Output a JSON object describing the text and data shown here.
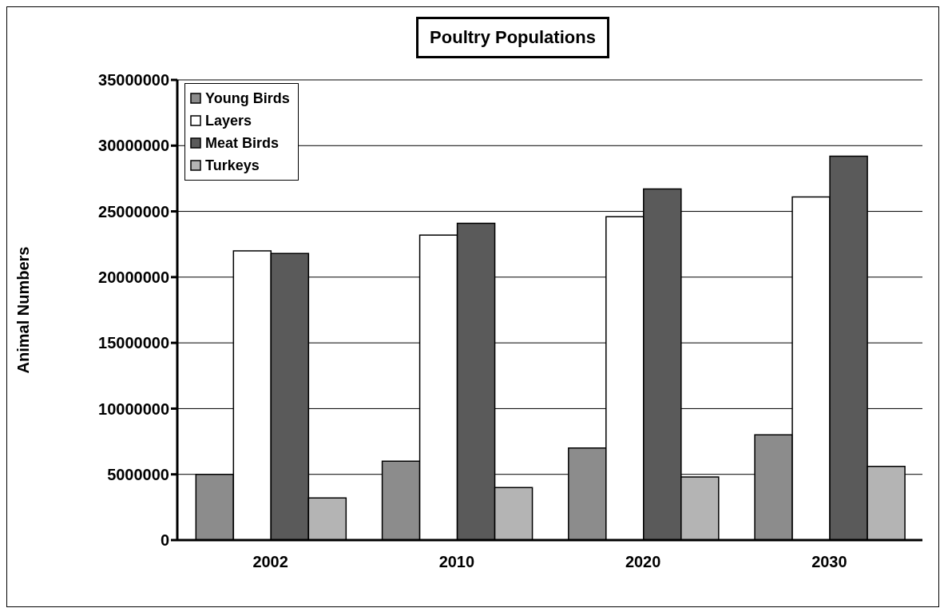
{
  "chart_data": {
    "type": "bar",
    "title": "Poultry Populations",
    "ylabel": "Animal Numbers",
    "categories": [
      "2002",
      "2010",
      "2020",
      "2030"
    ],
    "series": [
      {
        "name": "Young Birds",
        "color": "#8c8c8c",
        "values": [
          5000000,
          6000000,
          7000000,
          8000000
        ]
      },
      {
        "name": "Layers",
        "color": "#ffffff",
        "values": [
          22000000,
          23200000,
          24600000,
          26100000
        ]
      },
      {
        "name": "Meat Birds",
        "color": "#5a5a5a",
        "values": [
          21800000,
          24100000,
          26700000,
          29200000
        ]
      },
      {
        "name": "Turkeys",
        "color": "#b4b4b4",
        "values": [
          3200000,
          4000000,
          4800000,
          5600000
        ]
      }
    ],
    "ylim": [
      0,
      35000000
    ],
    "yticks": [
      0,
      5000000,
      10000000,
      15000000,
      20000000,
      25000000,
      30000000,
      35000000
    ],
    "grid": "y",
    "legend": "top left"
  }
}
